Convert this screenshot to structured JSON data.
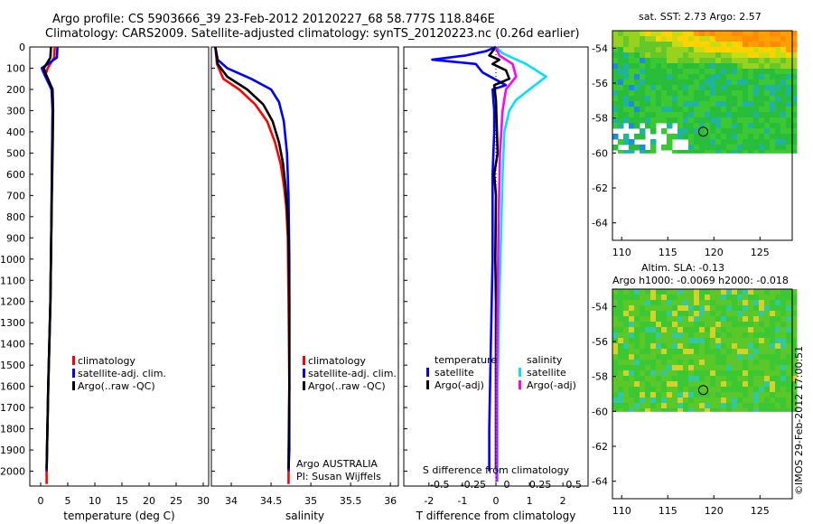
{
  "header": {
    "line1": "Argo profile: CS 5903666_39 23-Feb-2012 20120227_68 58.777S 118.846E",
    "line2": "Climatology: CARS2009. Satellite-adjusted climatology: synTS_20120223.nc (0.26d earlier)"
  },
  "colors": {
    "climatology": "#ff0000",
    "satellite": "#0000ff",
    "argo": "#000000",
    "satellite_salinity": "#00e0ff",
    "argo_salinity": "#ff00ff"
  },
  "depth_axis": {
    "ticks": [
      "0",
      "100",
      "200",
      "300",
      "400",
      "500",
      "600",
      "700",
      "800",
      "900",
      "1000",
      "1100",
      "1200",
      "1300",
      "1400",
      "1500",
      "1600",
      "1700",
      "1800",
      "1900",
      "2000"
    ]
  },
  "chart_data": [
    {
      "type": "line",
      "name": "temperature",
      "xlabel": "temperature (deg C)",
      "xlim": [
        -2,
        31
      ],
      "ylim": [
        0,
        2070
      ],
      "xticks": [
        "0",
        "5",
        "10",
        "15",
        "20",
        "25",
        "30"
      ],
      "xtick_values": [
        0,
        5,
        10,
        15,
        20,
        25,
        30
      ],
      "legend": [
        "climatology",
        "satellite-adj. clim.",
        "Argo(..raw -QC)"
      ],
      "series": [
        {
          "name": "climatology",
          "color": "red",
          "points": [
            [
              2.6,
              0
            ],
            [
              2.5,
              50
            ],
            [
              1.3,
              100
            ],
            [
              0.9,
              130
            ],
            [
              2.2,
              200
            ],
            [
              2.2,
              300
            ],
            [
              2.1,
              500
            ],
            [
              2.0,
              800
            ],
            [
              1.8,
              1200
            ],
            [
              1.4,
              1600
            ],
            [
              1.1,
              2000
            ],
            [
              1.1,
              2060
            ]
          ]
        },
        {
          "name": "satellite-adj. clim.",
          "color": "blue",
          "points": [
            [
              3.1,
              0
            ],
            [
              3.0,
              50
            ],
            [
              0.2,
              100
            ],
            [
              0.6,
              125
            ],
            [
              2.0,
              200
            ],
            [
              2.2,
              300
            ],
            [
              2.1,
              500
            ],
            [
              2.0,
              800
            ],
            [
              1.8,
              1200
            ],
            [
              1.4,
              1600
            ],
            [
              1.1,
              2000
            ]
          ]
        },
        {
          "name": "Argo(..raw -QC)",
          "color": "black",
          "points": [
            [
              1.9,
              0
            ],
            [
              1.8,
              50
            ],
            [
              0.6,
              100
            ],
            [
              1.0,
              130
            ],
            [
              2.2,
              200
            ],
            [
              2.3,
              300
            ],
            [
              2.2,
              500
            ],
            [
              2.0,
              800
            ],
            [
              1.8,
              1200
            ],
            [
              1.4,
              1600
            ],
            [
              1.1,
              1990
            ]
          ]
        }
      ]
    },
    {
      "type": "line",
      "name": "salinity",
      "xlabel": "salinity",
      "xlim": [
        33.75,
        36.1
      ],
      "ylim": [
        0,
        2070
      ],
      "xticks": [
        "34",
        "34.5",
        "35",
        "35.5",
        "36"
      ],
      "xtick_values": [
        34,
        34.5,
        35,
        35.5,
        36
      ],
      "legend": [
        "climatology",
        "satellite-adj. clim.",
        "Argo(..raw -QC)"
      ],
      "footer": [
        "Argo AUSTRALIA",
        "PI: Susan Wijffels"
      ],
      "series": [
        {
          "name": "climatology",
          "color": "red",
          "points": [
            [
              33.8,
              0
            ],
            [
              33.82,
              80
            ],
            [
              33.9,
              150
            ],
            [
              34.1,
              200
            ],
            [
              34.3,
              270
            ],
            [
              34.45,
              350
            ],
            [
              34.55,
              450
            ],
            [
              34.62,
              550
            ],
            [
              34.66,
              650
            ],
            [
              34.69,
              750
            ],
            [
              34.71,
              900
            ],
            [
              34.72,
              1200
            ],
            [
              34.73,
              1600
            ],
            [
              34.72,
              2060
            ]
          ]
        },
        {
          "name": "satellite-adj. clim.",
          "color": "blue",
          "points": [
            [
              33.8,
              0
            ],
            [
              33.83,
              60
            ],
            [
              33.95,
              100
            ],
            [
              34.25,
              150
            ],
            [
              34.5,
              200
            ],
            [
              34.6,
              260
            ],
            [
              34.66,
              350
            ],
            [
              34.7,
              500
            ],
            [
              34.72,
              700
            ],
            [
              34.73,
              1000
            ],
            [
              34.73,
              1500
            ],
            [
              34.73,
              1900
            ],
            [
              34.72,
              2000
            ]
          ]
        },
        {
          "name": "Argo(..raw -QC)",
          "color": "black",
          "points": [
            [
              33.8,
              0
            ],
            [
              33.83,
              80
            ],
            [
              33.95,
              140
            ],
            [
              34.2,
              200
            ],
            [
              34.4,
              270
            ],
            [
              34.52,
              350
            ],
            [
              34.6,
              450
            ],
            [
              34.65,
              550
            ],
            [
              34.68,
              650
            ],
            [
              34.7,
              750
            ],
            [
              34.72,
              900
            ],
            [
              34.73,
              1200
            ],
            [
              34.73,
              1600
            ],
            [
              34.72,
              1990
            ]
          ]
        }
      ]
    },
    {
      "type": "line",
      "name": "differences",
      "xlabel": "T difference from climatology",
      "xlabel_top": "S difference from climatology",
      "xlim": [
        -2.75,
        2.75
      ],
      "ylim": [
        0,
        2070
      ],
      "xticks": [
        "-2",
        "-1",
        "0",
        "1",
        "2"
      ],
      "xtick_values": [
        -2,
        -1,
        0,
        1,
        2
      ],
      "sticks": [
        "-0.5",
        "-0.25",
        "0",
        "0.25",
        "0.5"
      ],
      "stick_values": [
        -2,
        -1,
        0,
        1,
        2
      ],
      "legend_headers": [
        "temperature",
        "salinity"
      ],
      "legend": [
        "satellite",
        "Argo(-adj)",
        "satellite",
        "Argo(-adj)"
      ],
      "series": [
        {
          "name": "T satellite",
          "color": "blue",
          "points": [
            [
              0,
              0
            ],
            [
              -0.3,
              20
            ],
            [
              -0.9,
              40
            ],
            [
              -1.9,
              60
            ],
            [
              -0.6,
              80
            ],
            [
              -0.4,
              120
            ],
            [
              0.3,
              180
            ],
            [
              -0.1,
              200
            ],
            [
              -0.05,
              300
            ],
            [
              -0.05,
              400
            ],
            [
              -0.1,
              600
            ],
            [
              -0.1,
              1000
            ],
            [
              -0.15,
              1400
            ],
            [
              -0.2,
              1800
            ],
            [
              -0.2,
              2000
            ]
          ]
        },
        {
          "name": "T Argo(-adj)",
          "color": "black",
          "points": [
            [
              0,
              0
            ],
            [
              -0.2,
              40
            ],
            [
              0.1,
              60
            ],
            [
              -0.1,
              80
            ],
            [
              0.3,
              110
            ],
            [
              0.4,
              150
            ],
            [
              -0.05,
              180
            ],
            [
              0.0,
              250
            ],
            [
              0.05,
              500
            ],
            [
              -0.05,
              600
            ],
            [
              0.0,
              700
            ],
            [
              -0.02,
              1000
            ],
            [
              0.0,
              1200
            ],
            [
              0.0,
              1700
            ],
            [
              0.0,
              1990
            ]
          ]
        },
        {
          "name": "S satellite",
          "color": "cyan",
          "points": [
            [
              0,
              0
            ],
            [
              0.2,
              30
            ],
            [
              0.9,
              80
            ],
            [
              1.5,
              140
            ],
            [
              1.0,
              200
            ],
            [
              0.6,
              250
            ],
            [
              0.4,
              300
            ],
            [
              0.25,
              400
            ],
            [
              0.2,
              600
            ],
            [
              0.15,
              900
            ],
            [
              0.1,
              1200
            ],
            [
              0.05,
              1600
            ],
            [
              0.05,
              2050
            ]
          ]
        },
        {
          "name": "S Argo(-adj)",
          "color": "magenta",
          "points": [
            [
              0,
              0
            ],
            [
              0.1,
              40
            ],
            [
              0.5,
              80
            ],
            [
              0.6,
              140
            ],
            [
              0.3,
              200
            ],
            [
              0.2,
              300
            ],
            [
              0.12,
              500
            ],
            [
              0.08,
              800
            ],
            [
              0.05,
              1200
            ],
            [
              0.02,
              1600
            ],
            [
              0.02,
              2050
            ]
          ]
        }
      ]
    },
    {
      "type": "heatmap",
      "name": "sst_map",
      "title": "sat. SST: 2.73 Argo: 2.57",
      "xlim": [
        109,
        128.5
      ],
      "ylim": [
        -65,
        -53
      ],
      "xticks": [
        "110",
        "115",
        "120",
        "125"
      ],
      "xtick_values": [
        110,
        115,
        120,
        125
      ],
      "yticks": [
        "-54",
        "-56",
        "-58",
        "-60",
        "-62",
        "-64"
      ],
      "ytick_values": [
        -54,
        -56,
        -58,
        -60,
        -62,
        -64
      ],
      "data_bottom_lat": -60,
      "argo_position": [
        118.846,
        -58.777
      ]
    },
    {
      "type": "heatmap",
      "name": "sla_map",
      "title_lines": [
        "Altim. SLA: -0.13",
        "Argo h1000: -0.0069 h2000: -0.018"
      ],
      "xlim": [
        109,
        128.5
      ],
      "ylim": [
        -65,
        -53
      ],
      "xticks": [
        "110",
        "115",
        "120",
        "125"
      ],
      "xtick_values": [
        110,
        115,
        120,
        125
      ],
      "yticks": [
        "-54",
        "-56",
        "-58",
        "-60",
        "-62",
        "-64"
      ],
      "ytick_values": [
        -54,
        -56,
        -58,
        -60,
        -62,
        -64
      ],
      "data_bottom_lat": -60,
      "argo_position": [
        118.846,
        -58.777
      ]
    }
  ],
  "credit": "©IMOS 29-Feb-2012 17:00:51"
}
